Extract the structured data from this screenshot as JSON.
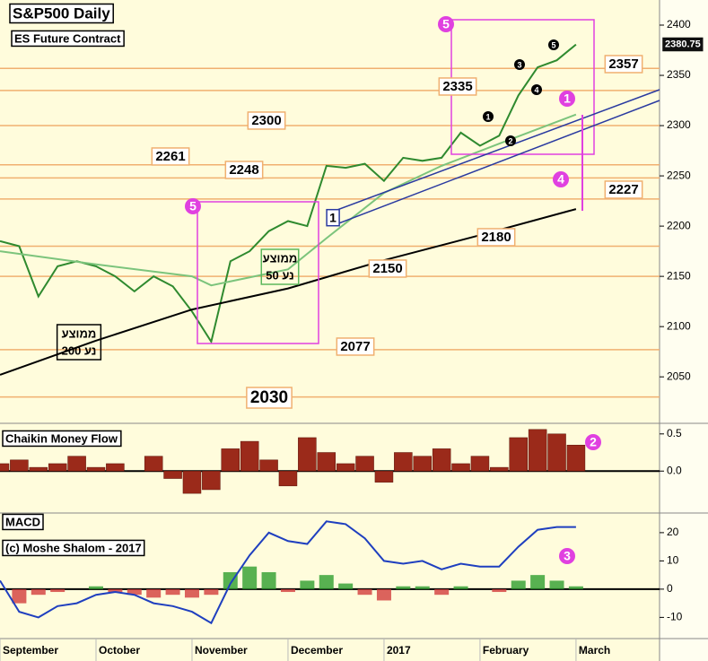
{
  "chart_data": [
    {
      "type": "line",
      "title": "S&P500 Daily",
      "subtitle": "ES Future Contract",
      "series": [
        {
          "color": "#2f8a2f",
          "x": [
            0,
            0.2,
            0.4,
            0.6,
            0.8,
            1,
            1.2,
            1.4,
            1.6,
            1.8,
            2,
            2.2,
            2.4,
            2.6,
            2.8,
            3,
            3.2,
            3.4,
            3.6,
            3.8,
            4,
            4.2,
            4.4,
            4.6,
            4.8,
            5,
            5.2,
            5.4,
            5.6,
            5.8,
            6
          ],
          "values": [
            2185,
            2180,
            2130,
            2160,
            2165,
            2160,
            2150,
            2135,
            2150,
            2140,
            2115,
            2085,
            2165,
            2175,
            2195,
            2205,
            2200,
            2260,
            2258,
            2262,
            2245,
            2268,
            2265,
            2268,
            2293,
            2280,
            2290,
            2330,
            2358,
            2365,
            2380.75
          ],
          "value_labels": [
            null,
            null,
            null,
            null,
            null,
            null,
            null,
            null,
            null,
            null,
            null,
            null,
            null,
            null,
            null,
            null,
            null,
            null,
            null,
            null,
            null,
            null,
            null,
            null,
            null,
            null,
            null,
            null,
            null,
            null,
            "2380.75"
          ]
        },
        {
          "color": "#7cc47c",
          "x": [
            0,
            1,
            2,
            2.2,
            3,
            3.4,
            4,
            4.6,
            5.2,
            6
          ],
          "values": [
            2175,
            2162,
            2150,
            2141,
            2157,
            2188,
            2233,
            2260,
            2282,
            2311
          ]
        },
        {
          "color": "#000000",
          "x": [
            0,
            1,
            2,
            3,
            4,
            5,
            6
          ],
          "values": [
            2052,
            2086,
            2117,
            2138,
            2166,
            2191,
            2217
          ]
        }
      ],
      "ylim": [
        2010,
        2425
      ],
      "yticks": [
        2050,
        2100,
        2150,
        2200,
        2250,
        2300,
        2350,
        2400
      ],
      "levels": [
        2357,
        2335,
        2300,
        2261,
        2248,
        2227,
        2180,
        2150,
        2077,
        2030
      ],
      "level_color": "#f0b070",
      "annotations": [
        "5",
        "5",
        "1",
        "1",
        "2",
        "3",
        "4",
        "1",
        "2",
        "3",
        "4",
        "5",
        "ממוצע",
        "נע 50",
        "ממוצע",
        "נע 200"
      ]
    },
    {
      "type": "bar",
      "title": "Chaikin Money Flow",
      "color": "#9b2a1a",
      "x": [
        0,
        0.2,
        0.4,
        0.6,
        0.8,
        1,
        1.2,
        1.4,
        1.6,
        1.8,
        2,
        2.2,
        2.4,
        2.6,
        2.8,
        3,
        3.2,
        3.4,
        3.6,
        3.8,
        4,
        4.2,
        4.4,
        4.6,
        4.8,
        5,
        5.2,
        5.4,
        5.6,
        5.8,
        6
      ],
      "values": [
        0.1,
        0.15,
        0.05,
        0.1,
        0.2,
        0.05,
        0.1,
        0,
        0.2,
        -0.1,
        -0.3,
        -0.25,
        0.3,
        0.4,
        0.15,
        -0.2,
        0.45,
        0.25,
        0.1,
        0.2,
        -0.15,
        0.25,
        0.2,
        0.3,
        0.1,
        0.2,
        0.05,
        0.45,
        0.56,
        0.5,
        0.35
      ],
      "ylim": [
        -0.54,
        0.57
      ],
      "yticks": [
        0.5,
        {
          "value": 0,
          "label": "0.0"
        }
      ],
      "zero_line": true
    },
    {
      "type": "line",
      "title": "MACD",
      "subtitle": "(c) Moshe Shalom - 2017",
      "x": [
        0,
        0.2,
        0.4,
        0.6,
        0.8,
        1,
        1.2,
        1.4,
        1.6,
        1.8,
        2,
        2.2,
        2.4,
        2.6,
        2.8,
        3,
        3.2,
        3.4,
        3.6,
        3.8,
        4,
        4.2,
        4.4,
        4.6,
        4.8,
        5,
        5.2,
        5.4,
        5.6,
        5.8,
        6
      ],
      "series": [
        {
          "color": "#1f3fbf",
          "values": [
            3,
            -8,
            -10,
            -6,
            -5,
            -2,
            -1,
            -2,
            -5,
            -6,
            -8,
            -12,
            2,
            12,
            20,
            17,
            16,
            24,
            23,
            18,
            10,
            9,
            10,
            7,
            9,
            8,
            8,
            15,
            21,
            22,
            22
          ]
        }
      ],
      "histogram": {
        "colors": [
          "#2e9e2e",
          "#d23c3c"
        ],
        "values": [
          0,
          -5,
          -2,
          -1,
          0,
          1,
          -1,
          -2,
          -3,
          -2,
          -3,
          -2,
          6,
          8,
          6,
          -1,
          3,
          5,
          2,
          -2,
          -4,
          1,
          1,
          -2,
          1,
          0,
          -1,
          3,
          5,
          3,
          1
        ]
      },
      "ylim": [
        -17.5,
        26
      ],
      "yticks": [
        20,
        10,
        0,
        -10
      ],
      "zero_line": true,
      "xlim": [
        0,
        6.87
      ],
      "xticks": [
        {
          "value": 0,
          "label": "September"
        },
        {
          "value": 1,
          "label": "October"
        },
        {
          "value": 2,
          "label": "November"
        },
        {
          "value": 3,
          "label": "December"
        },
        {
          "value": 4,
          "label": "2017"
        },
        {
          "value": 5,
          "label": "February"
        },
        {
          "value": 6,
          "label": "March"
        }
      ]
    }
  ]
}
